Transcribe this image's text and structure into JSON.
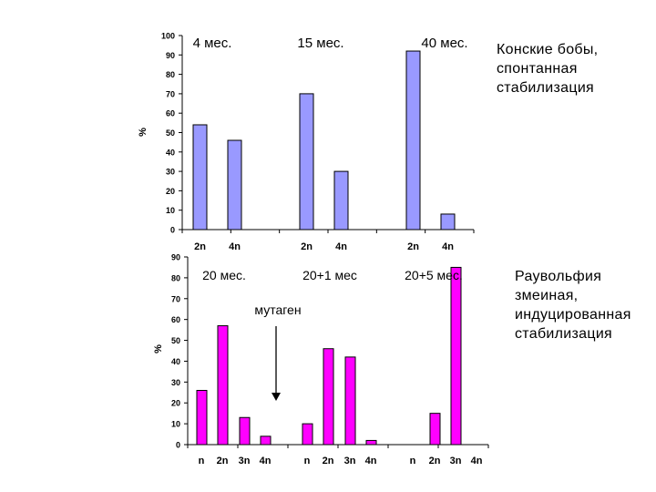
{
  "chart_data": [
    {
      "type": "bar",
      "ylabel": "%",
      "ylim": [
        0,
        100
      ],
      "yticks": [
        0,
        10,
        20,
        30,
        40,
        50,
        60,
        70,
        80,
        90,
        100
      ],
      "grid": false,
      "color": "#9999ff",
      "groups": [
        {
          "label": "4 мес.",
          "categories": [
            "2n",
            "4n"
          ],
          "values": [
            54,
            46
          ]
        },
        {
          "label": "15 мес.",
          "categories": [
            "2n",
            "4n"
          ],
          "values": [
            70,
            30
          ]
        },
        {
          "label": "40 мес.",
          "categories": [
            "2n",
            "4n"
          ],
          "values": [
            92,
            8
          ]
        }
      ],
      "side_label": [
        "Конские бобы,",
        "спонтанная",
        "стабилизация"
      ]
    },
    {
      "type": "bar",
      "ylabel": "%",
      "ylim": [
        0,
        90
      ],
      "yticks": [
        0,
        10,
        20,
        30,
        40,
        50,
        60,
        70,
        80,
        90
      ],
      "grid": false,
      "color": "#ff00ff",
      "groups": [
        {
          "label": "20 мес.",
          "categories": [
            "n",
            "2n",
            "3n",
            "4n"
          ],
          "values": [
            26,
            57,
            13,
            4
          ]
        },
        {
          "label": "20+1 мес",
          "categories": [
            "n",
            "2n",
            "3n",
            "4n"
          ],
          "values": [
            10,
            46,
            42,
            2
          ]
        },
        {
          "label": "20+5 мес.",
          "categories": [
            "n",
            "2n",
            "3n",
            "4n"
          ],
          "values": [
            0,
            15,
            85,
            0
          ]
        }
      ],
      "annotation": "мутаген",
      "side_label": [
        "Раувольфия",
        "змеиная,",
        "индуцированная",
        "стабилизация"
      ]
    }
  ]
}
